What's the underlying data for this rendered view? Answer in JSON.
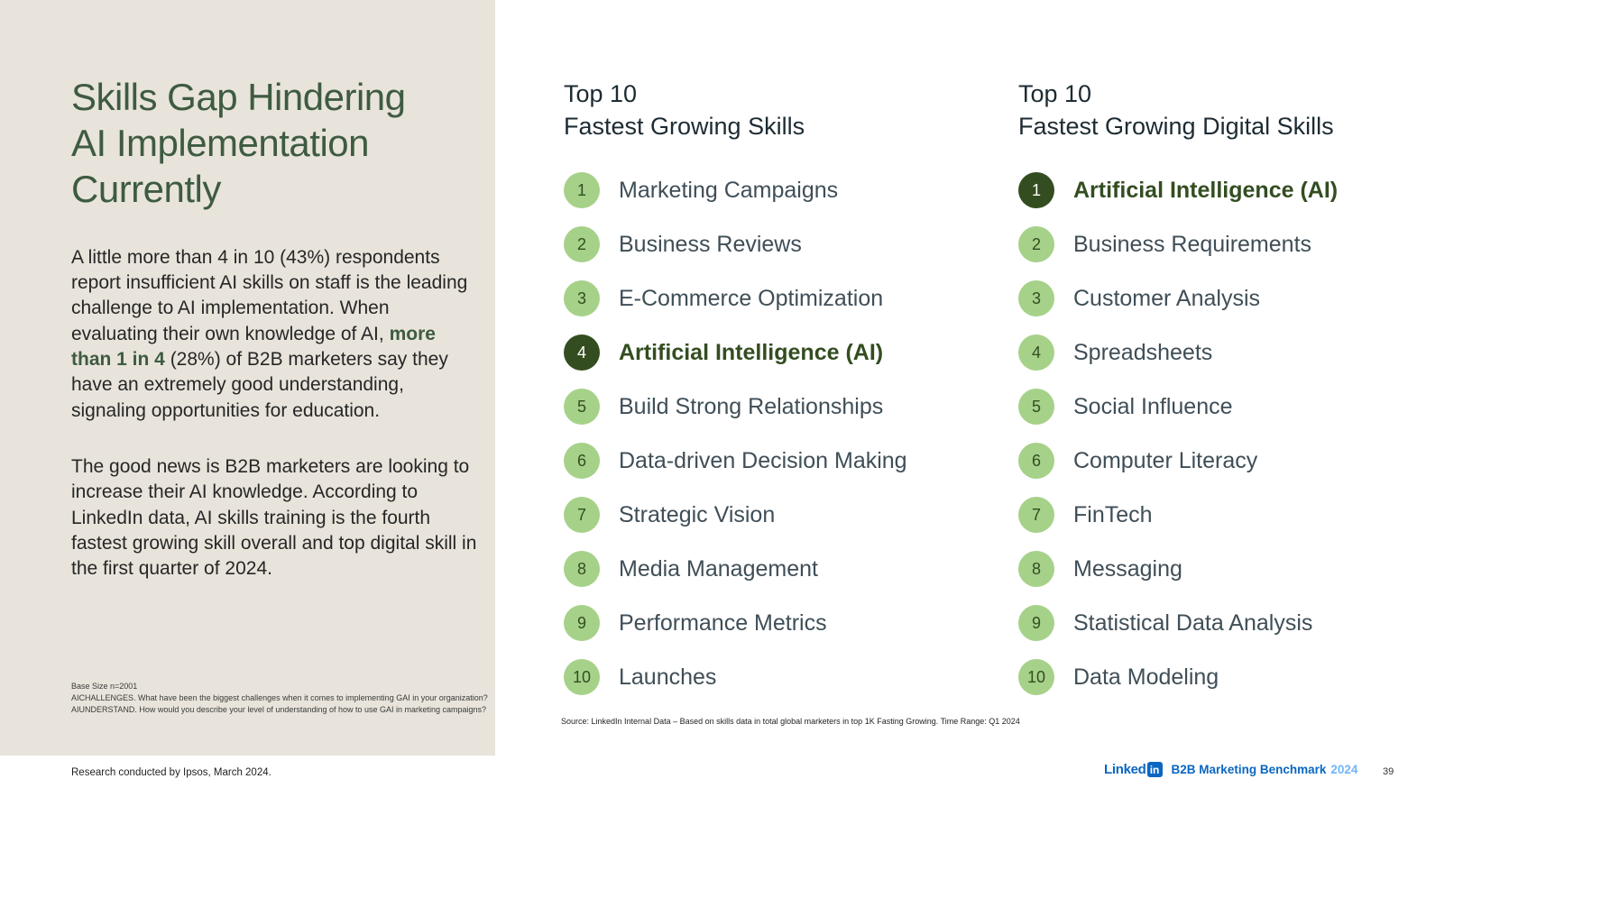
{
  "colors": {
    "panel_beige": "#e8e4db",
    "title_green": "#3e5b41",
    "dark_green": "#334d20",
    "light_green": "#a6d189",
    "heading_dark": "#1d2b33",
    "label_gray": "#3f4e57",
    "body_text": "#262626",
    "linkedin_blue": "#0a66c2",
    "linkedin_light_blue": "#70b5f9"
  },
  "left_panel": {
    "title_lines": [
      "Skills Gap Hindering",
      "AI Implementation",
      "Currently"
    ],
    "para1": {
      "before": "A little more than 4 in 10 (43%) respondents report insufficient AI skills on staff is the leading challenge to AI implementation. When evaluating their own knowledge of AI, ",
      "bold": "more than 1 in 4",
      "after": " (28%) of B2B marketers say they have an extremely good understanding, signaling opportunities for education."
    },
    "para2": "The good news is B2B marketers are looking to increase their AI knowledge. According to LinkedIn  data, AI skills training is the fourth fastest growing skill overall and top digital skill in the first quarter of 2024.",
    "footnotes": [
      "Base Size n=2001",
      "AICHALLENGES. What have been the biggest challenges when it comes to implementing GAI in your organization?",
      "AIUNDERSTAND. How would you describe your level of understanding of how to use GAI in marketing campaigns?"
    ]
  },
  "lists": [
    {
      "title_line1": "Top 10",
      "title_line2": "Fastest Growing Skills",
      "items": [
        {
          "rank": "1",
          "label": "Marketing Campaigns",
          "highlight": false
        },
        {
          "rank": "2",
          "label": "Business Reviews",
          "highlight": false
        },
        {
          "rank": "3",
          "label": "E-Commerce Optimization",
          "highlight": false
        },
        {
          "rank": "4",
          "label": "Artificial Intelligence (AI)",
          "highlight": true
        },
        {
          "rank": "5",
          "label": "Build Strong Relationships",
          "highlight": false
        },
        {
          "rank": "6",
          "label": "Data-driven Decision Making",
          "highlight": false
        },
        {
          "rank": "7",
          "label": "Strategic Vision",
          "highlight": false
        },
        {
          "rank": "8",
          "label": "Media Management",
          "highlight": false
        },
        {
          "rank": "9",
          "label": "Performance Metrics",
          "highlight": false
        },
        {
          "rank": "10",
          "label": "Launches",
          "highlight": false
        }
      ]
    },
    {
      "title_line1": "Top 10",
      "title_line2": "Fastest Growing Digital Skills",
      "items": [
        {
          "rank": "1",
          "label": "Artificial Intelligence (AI)",
          "highlight": true
        },
        {
          "rank": "2",
          "label": "Business Requirements",
          "highlight": false
        },
        {
          "rank": "3",
          "label": "Customer Analysis",
          "highlight": false
        },
        {
          "rank": "4",
          "label": "Spreadsheets",
          "highlight": false
        },
        {
          "rank": "5",
          "label": "Social Influence",
          "highlight": false
        },
        {
          "rank": "6",
          "label": "Computer Literacy",
          "highlight": false
        },
        {
          "rank": "7",
          "label": "FinTech",
          "highlight": false
        },
        {
          "rank": "8",
          "label": "Messaging",
          "highlight": false
        },
        {
          "rank": "9",
          "label": "Statistical Data Analysis",
          "highlight": false
        },
        {
          "rank": "10",
          "label": "Data Modeling",
          "highlight": false
        }
      ]
    }
  ],
  "source_note": "Source:  LinkedIn Internal Data – Based on skills data in total global marketers in top 1K Fasting Growing. Time Range: Q1 2024",
  "footer": {
    "research_credit": "Research conducted by Ipsos, March 2024.",
    "brand_wordmark": "Linked",
    "brand_badge": "in",
    "report_title": "B2B Marketing Benchmark",
    "report_year": "2024",
    "page_number": "39"
  }
}
